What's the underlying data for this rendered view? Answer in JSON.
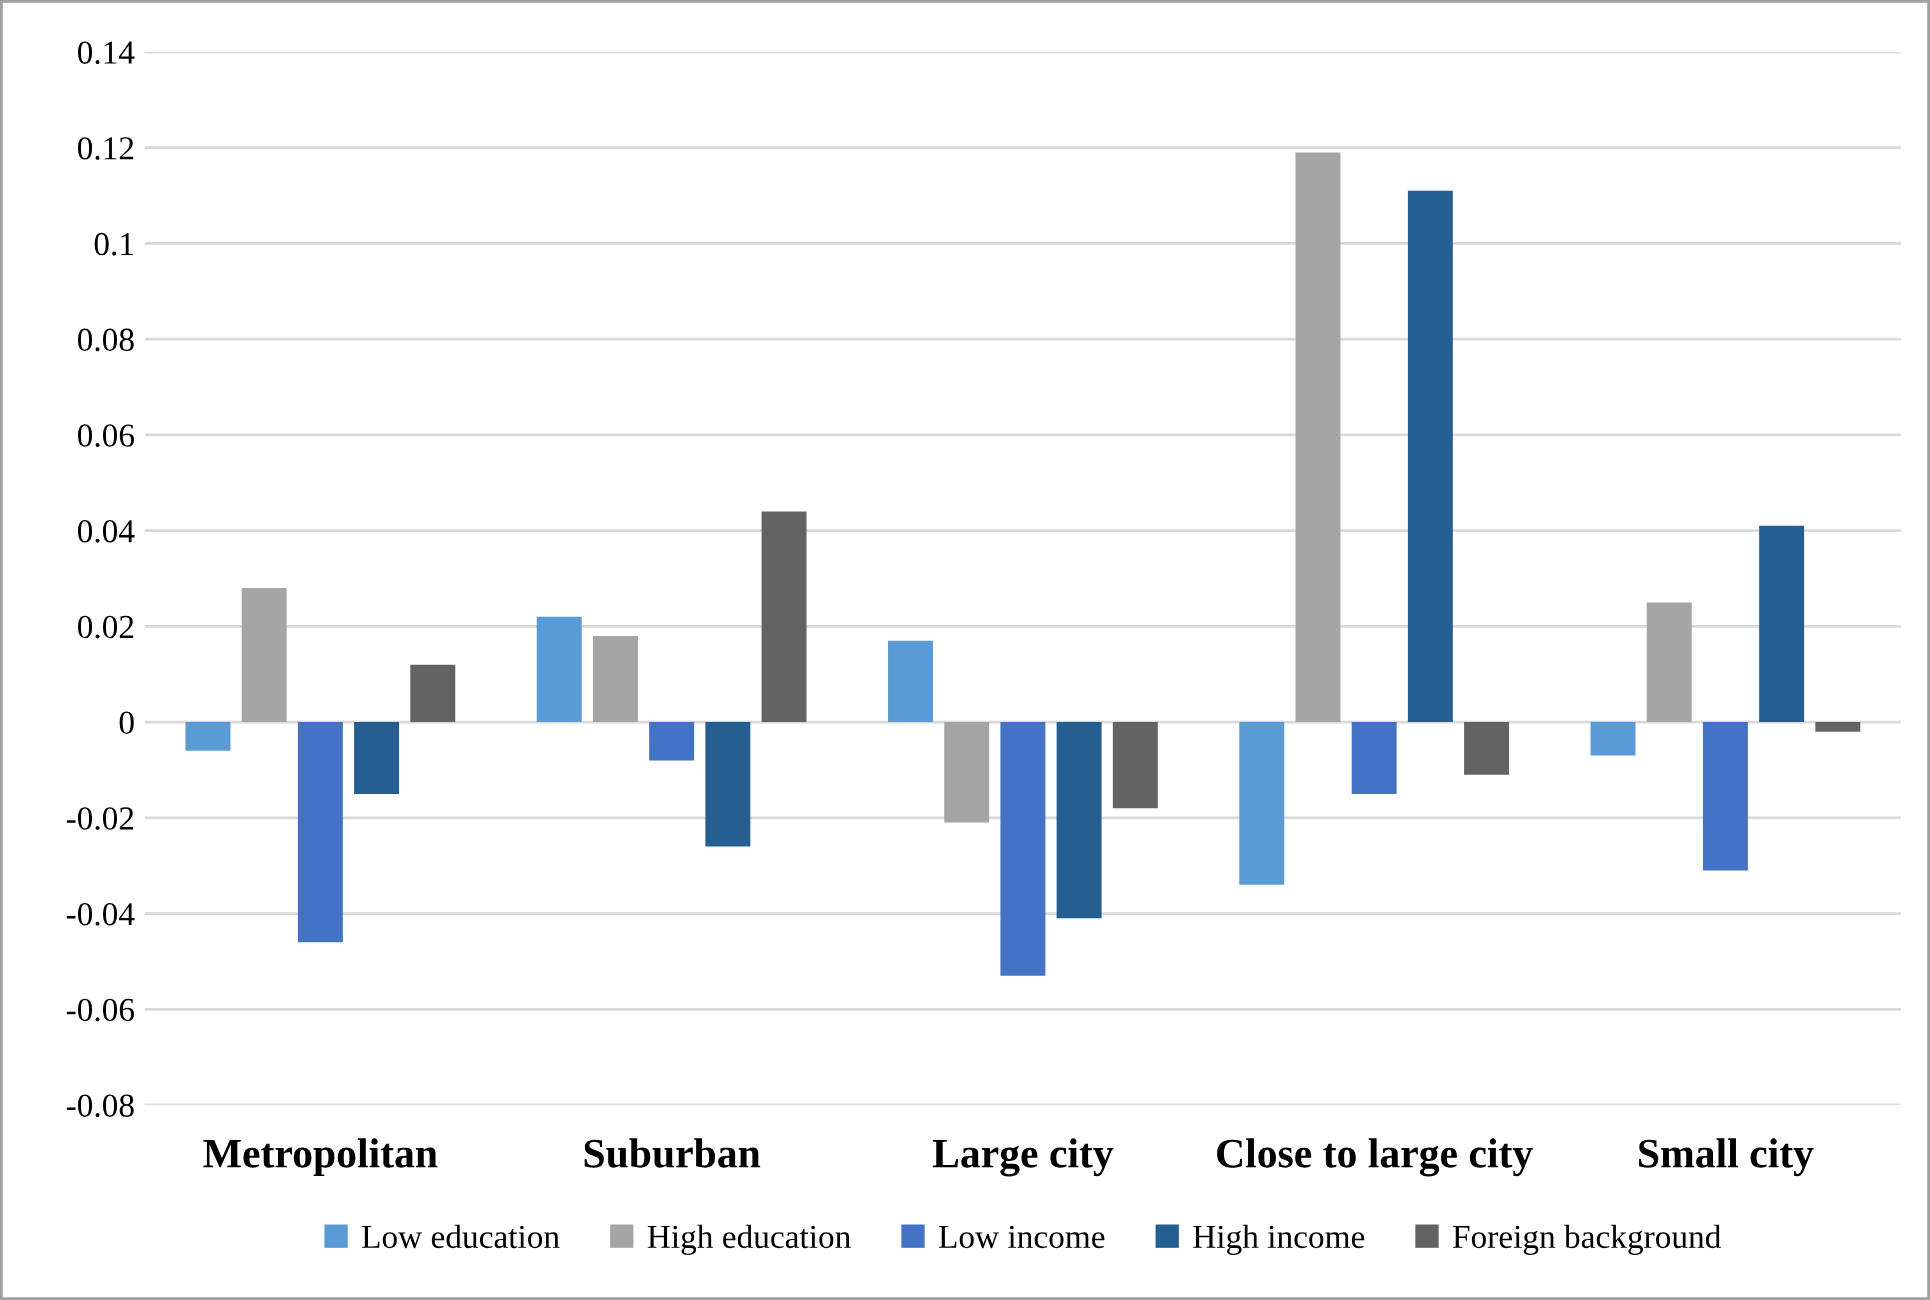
{
  "chart_data": {
    "type": "bar",
    "categories": [
      "Metropolitan",
      "Suburban",
      "Large city",
      "Close to large city",
      "Small city"
    ],
    "series": [
      {
        "name": "Low education",
        "color": "#5b9bd5",
        "values": [
          -0.006,
          0.022,
          0.017,
          -0.034,
          -0.007
        ]
      },
      {
        "name": "High education",
        "color": "#a5a5a5",
        "values": [
          0.028,
          0.018,
          -0.021,
          0.119,
          0.025
        ]
      },
      {
        "name": "Low income",
        "color": "#4472c4",
        "values": [
          -0.046,
          -0.008,
          -0.053,
          -0.015,
          -0.031
        ]
      },
      {
        "name": "High income",
        "color": "#255e91",
        "values": [
          -0.015,
          -0.026,
          -0.041,
          0.111,
          0.041
        ]
      },
      {
        "name": "Foreign background",
        "color": "#636363",
        "values": [
          0.012,
          0.044,
          -0.018,
          -0.011,
          -0.002
        ]
      }
    ],
    "ylim": [
      -0.08,
      0.14
    ],
    "yticks": [
      -0.08,
      -0.06,
      -0.04,
      -0.02,
      0,
      0.02,
      0.04,
      0.06,
      0.08,
      0.1,
      0.12,
      0.14
    ],
    "grid": "y",
    "legend": "bottom"
  }
}
